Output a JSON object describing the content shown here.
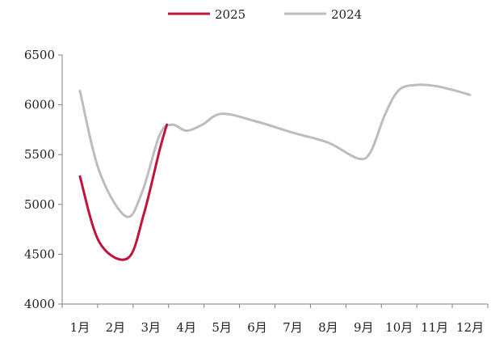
{
  "chart_data": {
    "type": "line",
    "title": "",
    "xlabel": "",
    "ylabel": "",
    "categories": [
      "1月",
      "2月",
      "3月",
      "4月",
      "5月",
      "6月",
      "7月",
      "8月",
      "9月",
      "10月",
      "11月",
      "12月"
    ],
    "ylim": [
      4000,
      6500
    ],
    "yticks": [
      4000,
      4500,
      5000,
      5500,
      6000,
      6500
    ],
    "grid": false,
    "legend": "top-center",
    "series": [
      {
        "name": "2025",
        "color": "#c0143c",
        "points": [
          [
            1,
            5280
          ],
          [
            1.55,
            4620
          ],
          [
            2.35,
            4460
          ],
          [
            2.8,
            4900
          ],
          [
            3.25,
            5550
          ],
          [
            3.45,
            5800
          ]
        ]
      },
      {
        "name": "2024",
        "color": "#bdbdbd",
        "points": [
          [
            1,
            6140
          ],
          [
            1.55,
            5330
          ],
          [
            2.3,
            4880
          ],
          [
            2.75,
            5120
          ],
          [
            3.25,
            5700
          ],
          [
            3.6,
            5800
          ],
          [
            4,
            5740
          ],
          [
            4.45,
            5800
          ],
          [
            5,
            5910
          ],
          [
            6,
            5830
          ],
          [
            7,
            5720
          ],
          [
            8,
            5620
          ],
          [
            8.85,
            5460
          ],
          [
            9.2,
            5530
          ],
          [
            9.6,
            5900
          ],
          [
            10,
            6150
          ],
          [
            10.5,
            6200
          ],
          [
            11,
            6190
          ],
          [
            11.5,
            6150
          ],
          [
            12,
            6100
          ]
        ]
      }
    ]
  }
}
